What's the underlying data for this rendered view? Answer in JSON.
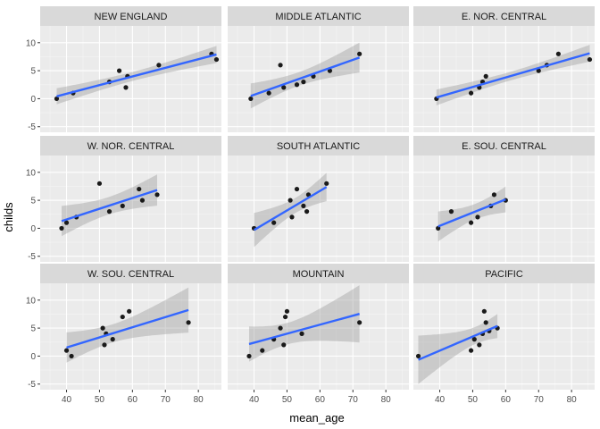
{
  "chart_data": {
    "type": "scatter",
    "facet_layout": "3x3 grid",
    "xlabel": "mean_age",
    "ylabel": "childs",
    "xlim": [
      32,
      87
    ],
    "ylim": [
      -6,
      13
    ],
    "x_ticks": [
      40,
      50,
      60,
      70,
      80
    ],
    "y_ticks": [
      -5,
      0,
      5,
      10
    ],
    "smoother": "linear regression with confidence band",
    "colors": {
      "panel_bg": "#ebebeb",
      "grid_major": "#ffffff",
      "grid_minor": "#f5f5f5",
      "strip_bg": "#d9d9d9",
      "point": "#1a1a1a",
      "fit_line": "#3366ff",
      "band": "#999999"
    },
    "facets": [
      {
        "region": "NEW ENGLAND",
        "x": [
          37,
          42,
          53,
          56,
          58,
          58.5,
          68,
          84,
          85.5
        ],
        "y": [
          0,
          1,
          3,
          5,
          2,
          4,
          6,
          8,
          7
        ]
      },
      {
        "region": "MIDDLE ATLANTIC",
        "x": [
          39,
          44.5,
          48,
          49,
          53,
          55,
          58,
          63,
          72
        ],
        "y": [
          0,
          1,
          6,
          2,
          2.5,
          3,
          4,
          5,
          8
        ]
      },
      {
        "region": "E. NOR. CENTRAL",
        "x": [
          39,
          49.5,
          52,
          53,
          54,
          70,
          72.5,
          76,
          85.5
        ],
        "y": [
          0,
          1,
          2,
          3,
          4,
          5,
          6,
          8,
          7
        ]
      },
      {
        "region": "W. NOR. CENTRAL",
        "x": [
          38.5,
          40,
          43,
          50,
          53,
          57,
          62,
          63,
          67.5
        ],
        "y": [
          0,
          1,
          2,
          8,
          3,
          4,
          7,
          5,
          6
        ]
      },
      {
        "region": "SOUTH ATLANTIC",
        "x": [
          40,
          46,
          51,
          51.5,
          53,
          55,
          56,
          56.5,
          62
        ],
        "y": [
          0,
          1,
          5,
          2,
          7,
          4,
          3,
          6,
          8
        ]
      },
      {
        "region": "E. SOU. CENTRAL",
        "x": [
          39.5,
          43.5,
          49.5,
          51.5,
          55.5,
          56.5,
          60
        ],
        "y": [
          0,
          3,
          1,
          2,
          4,
          6,
          5
        ]
      },
      {
        "region": "W. SOU. CENTRAL",
        "x": [
          40,
          41.5,
          51,
          51.5,
          52,
          54,
          57,
          59,
          77
        ],
        "y": [
          1,
          0,
          5,
          2,
          4,
          3,
          7,
          8,
          6
        ]
      },
      {
        "region": "MOUNTAIN",
        "x": [
          38.5,
          42.5,
          46,
          48,
          49,
          49.5,
          50,
          54.5,
          72
        ],
        "y": [
          0,
          1,
          3,
          5,
          2,
          7,
          8,
          4,
          6
        ]
      },
      {
        "region": "PACIFIC",
        "x": [
          33.5,
          49.5,
          50.5,
          52,
          53,
          53.5,
          54,
          55,
          57.5
        ],
        "y": [
          0,
          1,
          3,
          2,
          4,
          8,
          6,
          4.5,
          5
        ]
      }
    ]
  }
}
